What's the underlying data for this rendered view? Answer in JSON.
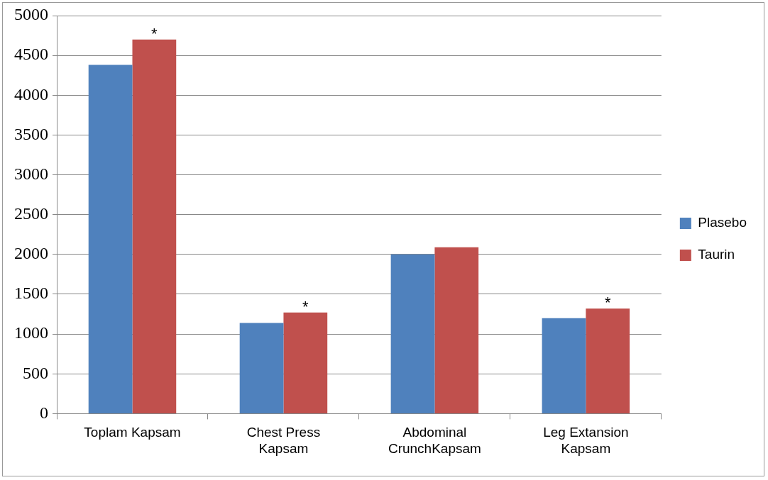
{
  "chart_data": {
    "type": "bar",
    "categories": [
      "Toplam Kapsam",
      "Chest Press\nKapsam",
      "Abdominal\nCrunchKapsam",
      "Leg Extansion\nKapsam"
    ],
    "series": [
      {
        "name": "Plasebo",
        "color": "#4f81bd",
        "values": [
          4380,
          1140,
          2000,
          1200
        ]
      },
      {
        "name": "Taurin",
        "color": "#c0504d",
        "values": [
          4700,
          1270,
          2090,
          1320
        ]
      }
    ],
    "ylim": [
      0,
      5000
    ],
    "yticks": [
      0,
      500,
      1000,
      1500,
      2000,
      2500,
      3000,
      3500,
      4000,
      4500,
      5000
    ],
    "grid": "y",
    "legend": "right",
    "annotations": [
      {
        "text": "*",
        "x": "Toplam Kapsam",
        "y": 4700
      },
      {
        "text": "*",
        "x": "Chest Press\nKapsam",
        "y": 1270
      },
      {
        "text": "*",
        "x": "Leg Extansion\nKapsam",
        "y": 1320
      }
    ]
  }
}
